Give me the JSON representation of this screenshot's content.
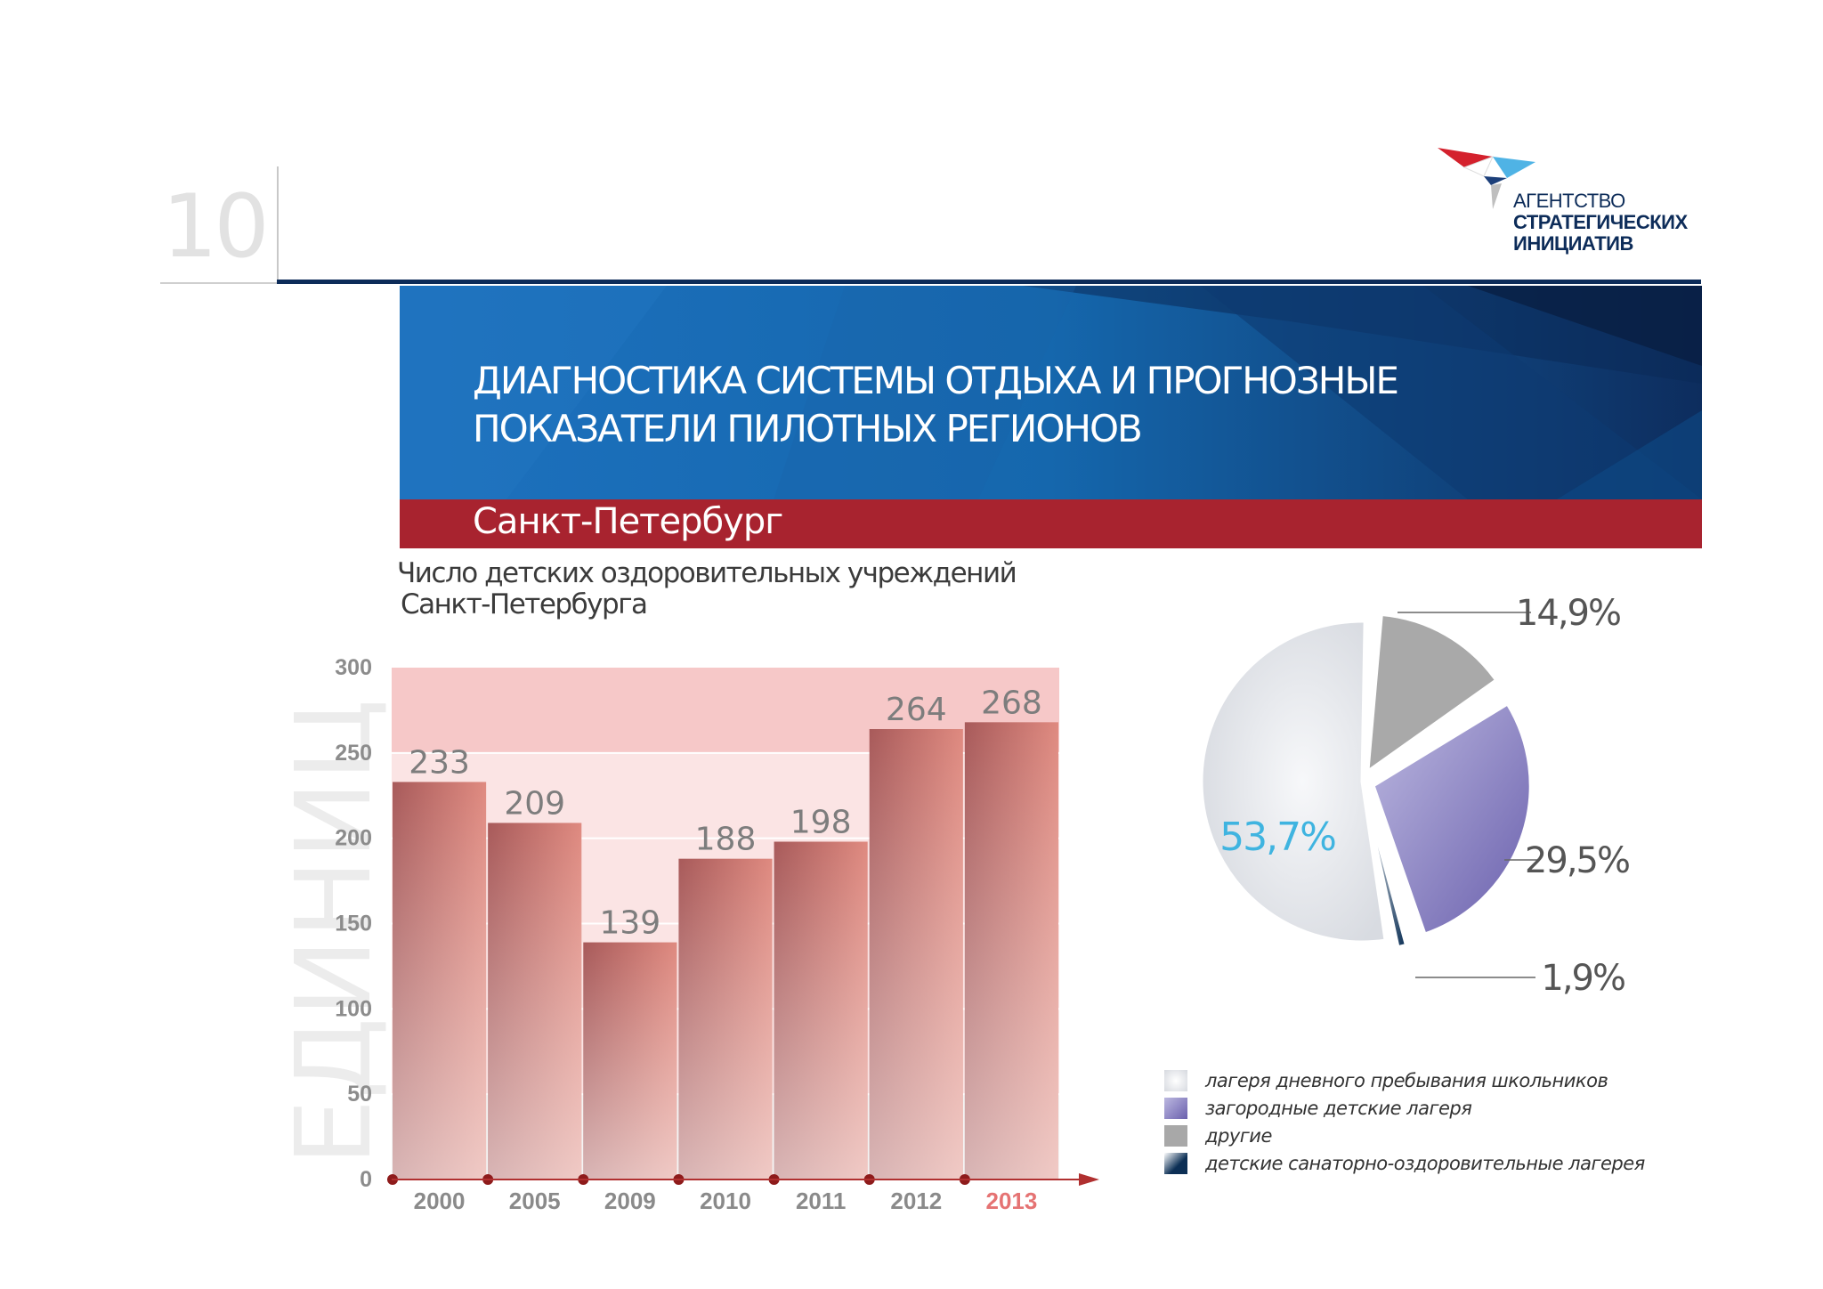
{
  "page": {
    "number": "10"
  },
  "logo": {
    "line1": "АГЕНТСТВО",
    "line2": "СТРАТЕГИЧЕСКИХ",
    "line3": "ИНИЦИАТИВ"
  },
  "banner": {
    "title_line1": "ДИАГНОСТИКА СИСТЕМЫ ОТДЫХА И ПРОГНОЗНЫЕ",
    "title_line2": "ПОКАЗАТЕЛИ ПИЛОТНЫХ РЕГИОНОВ",
    "city": "Санкт-Петербург"
  },
  "subtitle": {
    "line1": "Число детских оздоровительных учреждений",
    "line2": "Санкт-Петербурга"
  },
  "chart_data": [
    {
      "type": "bar",
      "title": "Число детских оздоровительных учреждений Санкт-Петербурга",
      "ylabel": "ЕДИНИЦ",
      "ylim": [
        0,
        300
      ],
      "yticks": [
        0,
        50,
        100,
        150,
        200,
        250,
        300
      ],
      "categories": [
        "2000",
        "2005",
        "2009",
        "2010",
        "2011",
        "2012",
        "2013"
      ],
      "values": [
        233,
        209,
        139,
        188,
        198,
        264,
        268
      ],
      "highlight_category": "2013",
      "colors": {
        "bar": "#c9635f",
        "highlight_label": "#e57373",
        "axis_label": "#8a8a8a"
      }
    },
    {
      "type": "pie",
      "slices": [
        {
          "label": "лагеря дневного пребывания школьников",
          "value": 53.7,
          "display": "53,7%",
          "color": "#e4e6ea"
        },
        {
          "label": "другие",
          "value": 14.9,
          "display": "14,9%",
          "color": "#a8a8a8"
        },
        {
          "label": "загородные детские лагеря",
          "value": 29.5,
          "display": "29,5%",
          "color": "#8d86c6"
        },
        {
          "label": "детские санаторно-оздоровительные лагерея",
          "value": 1.9,
          "display": "1,9%",
          "color": "#10385f"
        }
      ],
      "legend": [
        {
          "label": "лагеря дневного пребывания школьников",
          "color": "#dde0e5"
        },
        {
          "label": "загородные детские лагеря",
          "color": "#8d86c6"
        },
        {
          "label": "другие",
          "color": "#a8a8a8"
        },
        {
          "label": "детские санаторно-оздоровительные лагерея",
          "color": "#10385f"
        }
      ],
      "legend_position": "bottom",
      "colors": {
        "main_label": "#3fb4e0",
        "outer_label": "#555555"
      }
    }
  ]
}
